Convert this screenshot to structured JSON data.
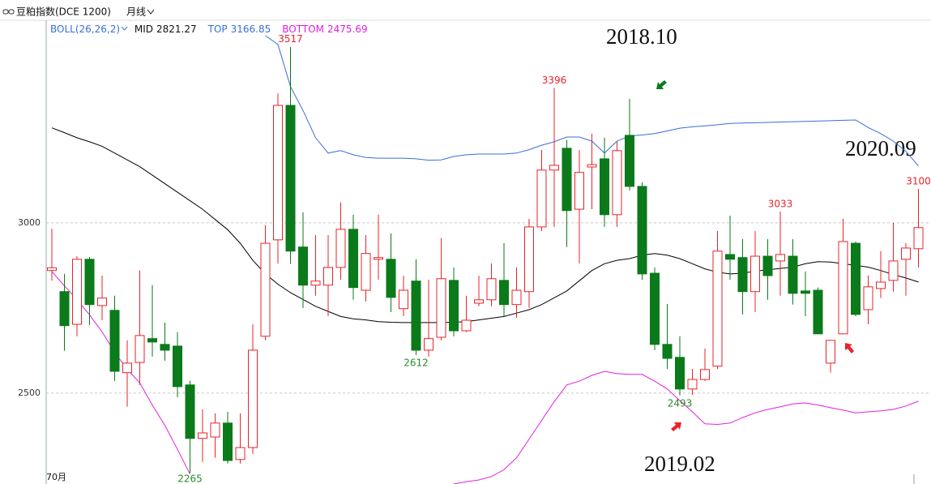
{
  "chart_data": {
    "type": "candlestick",
    "title": "豆粕指数(DCE 1200)",
    "period": "月线",
    "indicator": "BOLL(26,26,2)",
    "x_label": "70月",
    "up_color": "#e8232a",
    "down_color": "#0a7a1a",
    "ylim": [
      2233,
      3583
    ],
    "yticks": [
      2500,
      3000
    ],
    "grid": true,
    "open": [
      2860,
      2798,
      2702,
      2893,
      2757,
      2743,
      2560,
      2590,
      2660,
      2643,
      2638,
      2524,
      2367,
      2371,
      2412,
      2305,
      2340,
      2667,
      2950,
      3345,
      2929,
      2817,
      2817,
      2869,
      2981,
      2802,
      2893,
      2893,
      2748,
      2829,
      2626,
      2664,
      2831,
      2683,
      2764,
      2774,
      2831,
      2760,
      2798,
      2988,
      3155,
      3219,
      3040,
      3164,
      3188,
      3024,
      3257,
      3107,
      2852,
      2643,
      2605,
      2512,
      2540,
      2579,
      2907,
      2898,
      2798,
      2902,
      2888,
      2902,
      2800,
      2802,
      2588,
      2674,
      2940,
      2745,
      2807,
      2831,
      2893,
      2924
    ],
    "high": [
      2983,
      2850,
      2902,
      2900,
      2845,
      2786,
      2655,
      2860,
      2817,
      2707,
      2679,
      2536,
      2452,
      2440,
      2445,
      2440,
      2702,
      2993,
      3380,
      3517,
      3031,
      2964,
      2964,
      3060,
      3024,
      2964,
      3024,
      2969,
      2845,
      2893,
      2833,
      2955,
      2869,
      2786,
      2845,
      2881,
      2940,
      2869,
      3012,
      3214,
      3396,
      3243,
      3214,
      3262,
      3250,
      3238,
      3364,
      3119,
      2869,
      2762,
      2667,
      2571,
      2631,
      2976,
      3021,
      2952,
      2976,
      2952,
      3033,
      2952,
      2857,
      2810,
      2655,
      3012,
      2945,
      2845,
      2917,
      3000,
      2940,
      3100
    ],
    "low": [
      2830,
      2624,
      2667,
      2700,
      2714,
      2536,
      2460,
      2524,
      2607,
      2595,
      2488,
      2265,
      2298,
      2310,
      2293,
      2293,
      2321,
      2655,
      2880,
      2880,
      2750,
      2786,
      2726,
      2833,
      2774,
      2769,
      2833,
      2738,
      2726,
      2612,
      2607,
      2655,
      2667,
      2679,
      2755,
      2755,
      2726,
      2721,
      2750,
      2976,
      2988,
      2929,
      2881,
      3040,
      2988,
      2988,
      3095,
      2833,
      2626,
      2571,
      2493,
      2495,
      2536,
      2571,
      2833,
      2731,
      2738,
      2774,
      2786,
      2760,
      2726,
      2674,
      2560,
      2674,
      2726,
      2702,
      2779,
      2798,
      2786,
      2869
    ],
    "close": [
      2868,
      2698,
      2893,
      2760,
      2779,
      2564,
      2588,
      2669,
      2650,
      2626,
      2519,
      2367,
      2383,
      2412,
      2302,
      2340,
      2626,
      2940,
      3345,
      2917,
      2817,
      2829,
      2869,
      2981,
      2810,
      2910,
      2898,
      2781,
      2802,
      2626,
      2660,
      2836,
      2683,
      2714,
      2774,
      2836,
      2760,
      2802,
      2988,
      3155,
      3169,
      3036,
      3148,
      3171,
      3024,
      3212,
      3107,
      2850,
      2643,
      2602,
      2512,
      2540,
      2569,
      2917,
      2893,
      2798,
      2902,
      2845,
      2907,
      2793,
      2793,
      2674,
      2655,
      2945,
      2731,
      2812,
      2826,
      2888,
      2926,
      2986
    ],
    "high_labels": [
      null,
      null,
      null,
      null,
      null,
      null,
      null,
      null,
      null,
      null,
      null,
      null,
      null,
      null,
      null,
      null,
      null,
      null,
      null,
      "3517",
      null,
      null,
      null,
      null,
      null,
      null,
      null,
      null,
      null,
      null,
      null,
      null,
      null,
      null,
      null,
      null,
      null,
      null,
      null,
      null,
      "3396",
      null,
      null,
      null,
      null,
      null,
      null,
      null,
      null,
      null,
      null,
      null,
      null,
      null,
      null,
      null,
      null,
      null,
      "3033",
      null,
      null,
      null,
      null,
      null,
      null,
      null,
      null,
      null,
      null,
      "3100"
    ],
    "low_labels": [
      null,
      null,
      null,
      null,
      null,
      null,
      null,
      null,
      null,
      null,
      null,
      "2265",
      null,
      null,
      null,
      null,
      null,
      null,
      null,
      null,
      null,
      null,
      null,
      null,
      null,
      null,
      null,
      null,
      null,
      "2612",
      null,
      null,
      null,
      null,
      null,
      null,
      null,
      null,
      null,
      null,
      null,
      null,
      null,
      null,
      null,
      null,
      null,
      null,
      null,
      null,
      "2493",
      null,
      null,
      null,
      null,
      null,
      null,
      null,
      null,
      null,
      null,
      null,
      null,
      null,
      null,
      null,
      null,
      null,
      null,
      null
    ],
    "lines": [
      {
        "name": "MID",
        "color": "#000000",
        "last": 2821.27,
        "values": [
          3279,
          3265,
          3250,
          3238,
          3225,
          3205,
          3185,
          3165,
          3140,
          3115,
          3090,
          3065,
          3040,
          3010,
          2980,
          2940,
          2890,
          2850,
          2820,
          2795,
          2775,
          2755,
          2740,
          2725,
          2718,
          2715,
          2710,
          2708,
          2707,
          2707,
          2707,
          2707,
          2708,
          2710,
          2715,
          2720,
          2725,
          2735,
          2745,
          2760,
          2780,
          2800,
          2830,
          2860,
          2880,
          2890,
          2895,
          2905,
          2910,
          2905,
          2895,
          2880,
          2865,
          2855,
          2850,
          2852,
          2858,
          2862,
          2866,
          2870,
          2880,
          2886,
          2885,
          2880,
          2875,
          2870,
          2860,
          2848,
          2838,
          2826
        ]
      },
      {
        "name": "TOP",
        "color": "#3a6fd8",
        "last": 3166.85,
        "values": [
          null,
          null,
          null,
          null,
          null,
          null,
          null,
          null,
          null,
          null,
          null,
          null,
          null,
          null,
          null,
          null,
          null,
          3550,
          3524,
          3400,
          3330,
          3250,
          3205,
          3212,
          3200,
          3192,
          3190,
          3190,
          3190,
          3188,
          3184,
          3185,
          3195,
          3200,
          3202,
          3202,
          3202,
          3205,
          3215,
          3228,
          3238,
          3252,
          3252,
          3240,
          3205,
          3240,
          3255,
          3258,
          3262,
          3270,
          3278,
          3282,
          3285,
          3288,
          3292,
          3293,
          3294,
          3295,
          3296,
          3297,
          3298,
          3299,
          3300,
          3301,
          3302,
          3280,
          3262,
          3240,
          3210,
          3167
        ]
      },
      {
        "name": "BOTTOM",
        "color": "#e020e0",
        "last": 2475.69,
        "values": [
          2857,
          2815,
          2775,
          2730,
          2680,
          2620,
          2570,
          2530,
          2465,
          2405,
          2335,
          2262,
          null,
          null,
          null,
          null,
          null,
          null,
          null,
          null,
          null,
          null,
          null,
          null,
          null,
          null,
          null,
          null,
          null,
          null,
          null,
          null,
          2233,
          2240,
          2245,
          2255,
          2275,
          2310,
          2365,
          2420,
          2475,
          2524,
          2535,
          2552,
          2564,
          2557,
          2555,
          2555,
          2535,
          2512,
          2478,
          2445,
          2410,
          2408,
          2412,
          2428,
          2442,
          2452,
          2460,
          2468,
          2471,
          2465,
          2457,
          2450,
          2442,
          2445,
          2448,
          2452,
          2462,
          2476
        ]
      }
    ],
    "annotations": [
      "2018.10",
      "2019.02",
      "2020.09"
    ]
  }
}
